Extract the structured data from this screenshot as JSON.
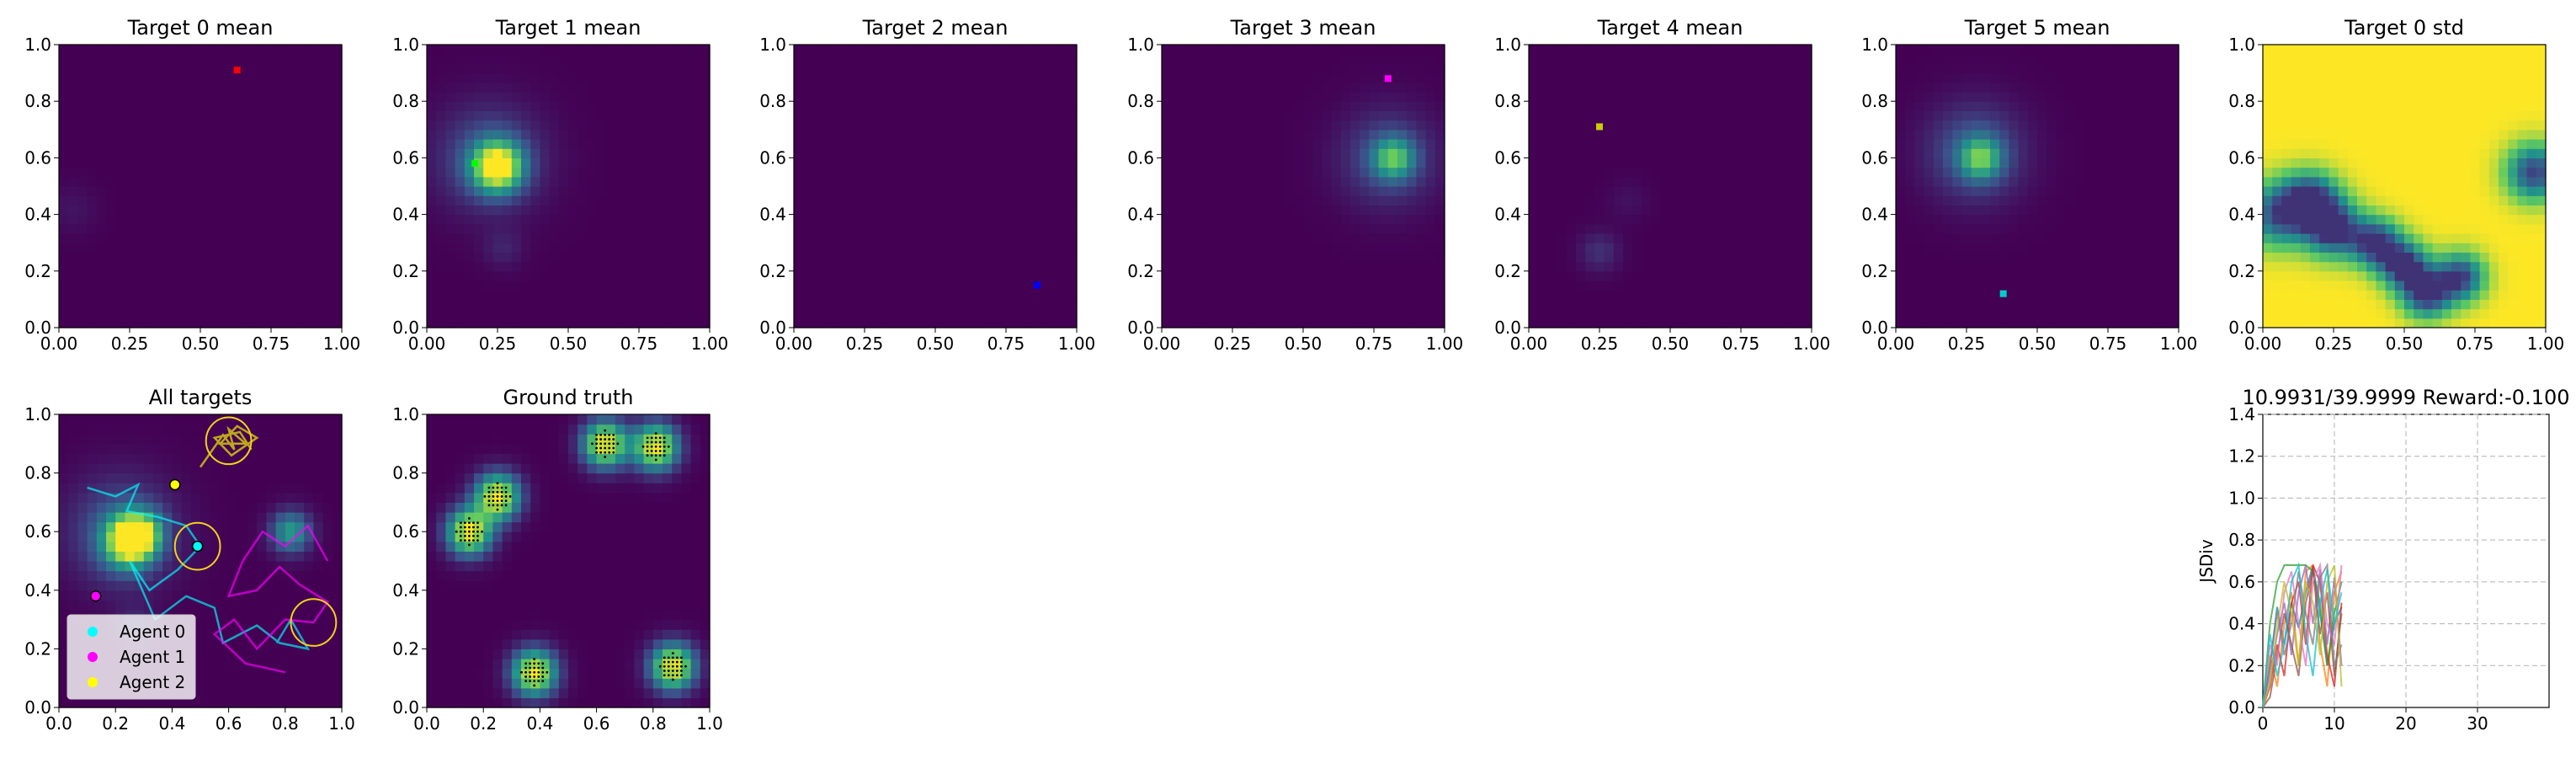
{
  "figure": {
    "background": "#ffffff"
  },
  "colormap": [
    "#440154",
    "#3b528b",
    "#21918c",
    "#5ec962",
    "#fde725"
  ],
  "panels": {
    "mean": [
      {
        "title": "Target 0 mean",
        "marker_color": "#ff0000"
      },
      {
        "title": "Target 1 mean",
        "marker_color": "#00ff00"
      },
      {
        "title": "Target 2 mean",
        "marker_color": "#0000ff"
      },
      {
        "title": "Target 3 mean",
        "marker_color": "#ff00ff"
      },
      {
        "title": "Target 4 mean",
        "marker_color": "#cccc00"
      },
      {
        "title": "Target 5 mean",
        "marker_color": "#00cccc"
      },
      {
        "title": "Target 0 std",
        "marker_color": null
      }
    ],
    "all_targets": {
      "title": "All targets"
    },
    "ground_truth": {
      "title": "Ground truth"
    },
    "metric": {
      "title": "10.9931/39.9999 Reward:-0.100",
      "ylabel": "JSDiv"
    }
  },
  "chart_data": [
    {
      "type": "heatmap",
      "title": "Target 0 mean",
      "xlim": [
        0,
        1
      ],
      "ylim": [
        0,
        1
      ],
      "xticks": [
        "0.00",
        "0.25",
        "0.50",
        "0.75",
        "1.00"
      ],
      "yticks": [
        "0.0",
        "0.2",
        "0.4",
        "0.6",
        "0.8",
        "1.0"
      ],
      "blobs": [
        {
          "x": 0.05,
          "y": 0.42,
          "sigma": 0.06,
          "amp": 0.06
        }
      ],
      "marker": {
        "x": 0.63,
        "y": 0.91
      }
    },
    {
      "type": "heatmap",
      "title": "Target 1 mean",
      "xlim": [
        0,
        1
      ],
      "ylim": [
        0,
        1
      ],
      "xticks": [
        "0.00",
        "0.25",
        "0.50",
        "0.75",
        "1.00"
      ],
      "yticks": [
        "0.0",
        "0.2",
        "0.4",
        "0.6",
        "0.8",
        "1.0"
      ],
      "blobs": [
        {
          "x": 0.25,
          "y": 0.57,
          "sigma": 0.06,
          "amp": 1.0
        },
        {
          "x": 0.22,
          "y": 0.6,
          "sigma": 0.13,
          "amp": 0.28
        },
        {
          "x": 0.27,
          "y": 0.28,
          "sigma": 0.05,
          "amp": 0.1
        }
      ],
      "marker": {
        "x": 0.17,
        "y": 0.58
      }
    },
    {
      "type": "heatmap",
      "title": "Target 2 mean",
      "xlim": [
        0,
        1
      ],
      "ylim": [
        0,
        1
      ],
      "xticks": [
        "0.00",
        "0.25",
        "0.50",
        "0.75",
        "1.00"
      ],
      "yticks": [
        "0.0",
        "0.2",
        "0.4",
        "0.6",
        "0.8",
        "1.0"
      ],
      "blobs": [],
      "marker": {
        "x": 0.86,
        "y": 0.15
      }
    },
    {
      "type": "heatmap",
      "title": "Target 3 mean",
      "xlim": [
        0,
        1
      ],
      "ylim": [
        0,
        1
      ],
      "xticks": [
        "0.00",
        "0.25",
        "0.50",
        "0.75",
        "1.00"
      ],
      "yticks": [
        "0.0",
        "0.2",
        "0.4",
        "0.6",
        "0.8",
        "1.0"
      ],
      "blobs": [
        {
          "x": 0.82,
          "y": 0.6,
          "sigma": 0.05,
          "amp": 0.55
        },
        {
          "x": 0.8,
          "y": 0.6,
          "sigma": 0.12,
          "amp": 0.25
        }
      ],
      "marker": {
        "x": 0.8,
        "y": 0.88
      }
    },
    {
      "type": "heatmap",
      "title": "Target 4 mean",
      "xlim": [
        0,
        1
      ],
      "ylim": [
        0,
        1
      ],
      "xticks": [
        "0.00",
        "0.25",
        "0.50",
        "0.75",
        "1.00"
      ],
      "yticks": [
        "0.0",
        "0.2",
        "0.4",
        "0.6",
        "0.8",
        "1.0"
      ],
      "blobs": [
        {
          "x": 0.25,
          "y": 0.27,
          "sigma": 0.05,
          "amp": 0.15
        },
        {
          "x": 0.35,
          "y": 0.45,
          "sigma": 0.05,
          "amp": 0.05
        }
      ],
      "marker": {
        "x": 0.25,
        "y": 0.71
      }
    },
    {
      "type": "heatmap",
      "title": "Target 5 mean",
      "xlim": [
        0,
        1
      ],
      "ylim": [
        0,
        1
      ],
      "xticks": [
        "0.00",
        "0.25",
        "0.50",
        "0.75",
        "1.00"
      ],
      "yticks": [
        "0.0",
        "0.2",
        "0.4",
        "0.6",
        "0.8",
        "1.0"
      ],
      "blobs": [
        {
          "x": 0.3,
          "y": 0.6,
          "sigma": 0.05,
          "amp": 0.55
        },
        {
          "x": 0.28,
          "y": 0.62,
          "sigma": 0.12,
          "amp": 0.3
        }
      ],
      "marker": {
        "x": 0.38,
        "y": 0.12
      }
    },
    {
      "type": "heatmap",
      "title": "Target 0 std",
      "xlim": [
        0,
        1
      ],
      "ylim": [
        0,
        1
      ],
      "xticks": [
        "0.00",
        "0.25",
        "0.50",
        "0.75",
        "1.00"
      ],
      "yticks": [
        "0.0",
        "0.2",
        "0.4",
        "0.6",
        "0.8",
        "1.0"
      ],
      "mode": "std",
      "dips": [
        {
          "x": 0.05,
          "y": 0.4,
          "sigma": 0.08,
          "amp": 0.7
        },
        {
          "x": 0.17,
          "y": 0.45,
          "sigma": 0.07,
          "amp": 0.85
        },
        {
          "x": 0.25,
          "y": 0.35,
          "sigma": 0.07,
          "amp": 0.85
        },
        {
          "x": 0.4,
          "y": 0.3,
          "sigma": 0.06,
          "amp": 0.85
        },
        {
          "x": 0.5,
          "y": 0.22,
          "sigma": 0.06,
          "amp": 0.85
        },
        {
          "x": 0.58,
          "y": 0.12,
          "sigma": 0.06,
          "amp": 0.85
        },
        {
          "x": 0.7,
          "y": 0.18,
          "sigma": 0.06,
          "amp": 0.8
        },
        {
          "x": 0.96,
          "y": 0.55,
          "sigma": 0.07,
          "amp": 0.8
        }
      ]
    },
    {
      "type": "heatmap",
      "title": "All targets",
      "xlim": [
        0,
        1
      ],
      "ylim": [
        0,
        1
      ],
      "xticks": [
        "0.0",
        "0.2",
        "0.4",
        "0.6",
        "0.8",
        "1.0"
      ],
      "yticks": [
        "0.0",
        "0.2",
        "0.4",
        "0.6",
        "0.8",
        "1.0"
      ],
      "blobs": [
        {
          "x": 0.25,
          "y": 0.57,
          "sigma": 0.06,
          "amp": 1.0
        },
        {
          "x": 0.22,
          "y": 0.6,
          "sigma": 0.13,
          "amp": 0.3
        },
        {
          "x": 0.82,
          "y": 0.6,
          "sigma": 0.05,
          "amp": 0.55
        },
        {
          "x": 0.3,
          "y": 0.6,
          "sigma": 0.05,
          "amp": 0.4
        },
        {
          "x": 0.27,
          "y": 0.28,
          "sigma": 0.05,
          "amp": 0.12
        }
      ],
      "circles": [
        {
          "x": 0.6,
          "y": 0.91,
          "r": 0.08
        },
        {
          "x": 0.49,
          "y": 0.55,
          "r": 0.08
        },
        {
          "x": 0.9,
          "y": 0.29,
          "r": 0.08
        }
      ],
      "agents": [
        {
          "label": "Agent 0",
          "color": "#00ffff",
          "pos": {
            "x": 0.49,
            "y": 0.55
          },
          "trail": [
            [
              0.1,
              0.75
            ],
            [
              0.2,
              0.72
            ],
            [
              0.28,
              0.76
            ],
            [
              0.24,
              0.67
            ],
            [
              0.35,
              0.65
            ],
            [
              0.45,
              0.62
            ],
            [
              0.5,
              0.55
            ],
            [
              0.42,
              0.47
            ],
            [
              0.32,
              0.4
            ],
            [
              0.25,
              0.5
            ],
            [
              0.34,
              0.3
            ],
            [
              0.45,
              0.38
            ],
            [
              0.55,
              0.34
            ],
            [
              0.58,
              0.22
            ],
            [
              0.7,
              0.28
            ],
            [
              0.78,
              0.22
            ],
            [
              0.88,
              0.2
            ],
            [
              0.82,
              0.3
            ],
            [
              0.77,
              0.22
            ]
          ]
        },
        {
          "label": "Agent 1",
          "color": "#ff00ff",
          "pos": {
            "x": 0.13,
            "y": 0.38
          },
          "trail": [
            [
              0.95,
              0.5
            ],
            [
              0.88,
              0.62
            ],
            [
              0.8,
              0.55
            ],
            [
              0.72,
              0.6
            ],
            [
              0.65,
              0.5
            ],
            [
              0.6,
              0.38
            ],
            [
              0.7,
              0.4
            ],
            [
              0.78,
              0.48
            ],
            [
              0.85,
              0.42
            ],
            [
              0.95,
              0.36
            ],
            [
              0.9,
              0.29
            ],
            [
              0.8,
              0.3
            ],
            [
              0.7,
              0.2
            ],
            [
              0.62,
              0.3
            ],
            [
              0.55,
              0.25
            ],
            [
              0.66,
              0.15
            ],
            [
              0.8,
              0.12
            ]
          ]
        },
        {
          "label": "Agent 2",
          "color": "#ffff00",
          "pos": {
            "x": 0.41,
            "y": 0.76
          },
          "trail": [
            [
              0.5,
              0.82
            ],
            [
              0.58,
              0.93
            ],
            [
              0.62,
              0.88
            ],
            [
              0.6,
              0.95
            ],
            [
              0.66,
              0.9
            ],
            [
              0.57,
              0.9
            ],
            [
              0.63,
              0.96
            ],
            [
              0.7,
              0.92
            ],
            [
              0.61,
              0.86
            ],
            [
              0.55,
              0.92
            ],
            [
              0.64,
              0.94
            ],
            [
              0.68,
              0.88
            ]
          ]
        }
      ],
      "legend": {
        "placement": "lower-left"
      }
    },
    {
      "type": "heatmap",
      "title": "Ground truth",
      "xlim": [
        0,
        1
      ],
      "ylim": [
        0,
        1
      ],
      "xticks": [
        "0.0",
        "0.2",
        "0.4",
        "0.6",
        "0.8",
        "1.0"
      ],
      "yticks": [
        "0.0",
        "0.2",
        "0.4",
        "0.6",
        "0.8",
        "1.0"
      ],
      "blobs": [
        {
          "x": 0.15,
          "y": 0.6,
          "sigma": 0.055,
          "amp": 1.0
        },
        {
          "x": 0.25,
          "y": 0.72,
          "sigma": 0.055,
          "amp": 1.0
        },
        {
          "x": 0.63,
          "y": 0.9,
          "sigma": 0.055,
          "amp": 1.0
        },
        {
          "x": 0.81,
          "y": 0.89,
          "sigma": 0.055,
          "amp": 1.0
        },
        {
          "x": 0.38,
          "y": 0.12,
          "sigma": 0.055,
          "amp": 1.0
        },
        {
          "x": 0.87,
          "y": 0.14,
          "sigma": 0.055,
          "amp": 1.0
        }
      ],
      "dots": true
    },
    {
      "type": "line",
      "title": "10.9931/39.9999 Reward:-0.100",
      "xlabel": "",
      "ylabel": "JSDiv",
      "xlim": [
        0,
        40
      ],
      "ylim": [
        0,
        1.4
      ],
      "xticks": [
        0,
        10,
        20,
        30
      ],
      "yticks": [
        0.0,
        0.2,
        0.4,
        0.6,
        0.8,
        1.0,
        1.2,
        1.4
      ],
      "grid": true,
      "series": [
        {
          "color": "#1f77b4",
          "x": [
            0,
            1,
            2,
            3,
            4,
            5,
            6,
            7,
            8,
            9,
            10,
            11
          ],
          "y": [
            0.0,
            0.2,
            0.48,
            0.3,
            0.5,
            0.38,
            0.55,
            0.68,
            0.45,
            0.2,
            0.4,
            0.48
          ]
        },
        {
          "color": "#ff7f0e",
          "x": [
            0,
            1,
            2,
            3,
            4,
            5,
            6,
            7,
            8,
            9,
            10,
            11
          ],
          "y": [
            0.0,
            0.25,
            0.1,
            0.4,
            0.55,
            0.2,
            0.65,
            0.68,
            0.3,
            0.1,
            0.55,
            0.65
          ]
        },
        {
          "color": "#2ca02c",
          "x": [
            0,
            1,
            2,
            3,
            4,
            5,
            6,
            7,
            8,
            9,
            10,
            11
          ],
          "y": [
            0.0,
            0.4,
            0.6,
            0.68,
            0.68,
            0.68,
            0.68,
            0.65,
            0.5,
            0.2,
            0.45,
            0.6
          ]
        },
        {
          "color": "#d62728",
          "x": [
            0,
            1,
            2,
            3,
            4,
            5,
            6,
            7,
            8,
            9,
            10,
            11
          ],
          "y": [
            0.0,
            0.1,
            0.3,
            0.15,
            0.5,
            0.6,
            0.3,
            0.68,
            0.6,
            0.25,
            0.1,
            0.5
          ]
        },
        {
          "color": "#9467bd",
          "x": [
            0,
            1,
            2,
            3,
            4,
            5,
            6,
            7,
            8,
            9,
            10,
            11
          ],
          "y": [
            0.0,
            0.15,
            0.35,
            0.5,
            0.25,
            0.55,
            0.68,
            0.4,
            0.66,
            0.3,
            0.62,
            0.2
          ]
        },
        {
          "color": "#8c564b",
          "x": [
            0,
            1,
            2,
            3,
            4,
            5,
            6,
            7,
            8,
            9,
            10,
            11
          ],
          "y": [
            0.0,
            0.05,
            0.25,
            0.45,
            0.3,
            0.15,
            0.5,
            0.66,
            0.35,
            0.55,
            0.15,
            0.45
          ]
        },
        {
          "color": "#e377c2",
          "x": [
            0,
            1,
            2,
            3,
            4,
            5,
            6,
            7,
            8,
            9,
            10,
            11
          ],
          "y": [
            0.0,
            0.3,
            0.2,
            0.55,
            0.65,
            0.4,
            0.2,
            0.6,
            0.68,
            0.4,
            0.3,
            0.68
          ]
        },
        {
          "color": "#7f7f7f",
          "x": [
            0,
            1,
            2,
            3,
            4,
            5,
            6,
            7,
            8,
            9,
            10,
            11
          ],
          "y": [
            0.0,
            0.2,
            0.45,
            0.25,
            0.4,
            0.65,
            0.45,
            0.3,
            0.62,
            0.68,
            0.2,
            0.3
          ]
        },
        {
          "color": "#bcbd22",
          "x": [
            0,
            1,
            2,
            3,
            4,
            5,
            6,
            7,
            8,
            9,
            10,
            11
          ],
          "y": [
            0.0,
            0.12,
            0.38,
            0.6,
            0.45,
            0.2,
            0.6,
            0.5,
            0.25,
            0.6,
            0.68,
            0.1
          ]
        },
        {
          "color": "#17becf",
          "x": [
            0,
            1,
            2,
            3,
            4,
            5,
            6,
            7,
            8,
            9,
            10,
            11
          ],
          "y": [
            0.0,
            0.35,
            0.15,
            0.3,
            0.6,
            0.68,
            0.35,
            0.15,
            0.5,
            0.66,
            0.4,
            0.55
          ]
        }
      ]
    }
  ]
}
